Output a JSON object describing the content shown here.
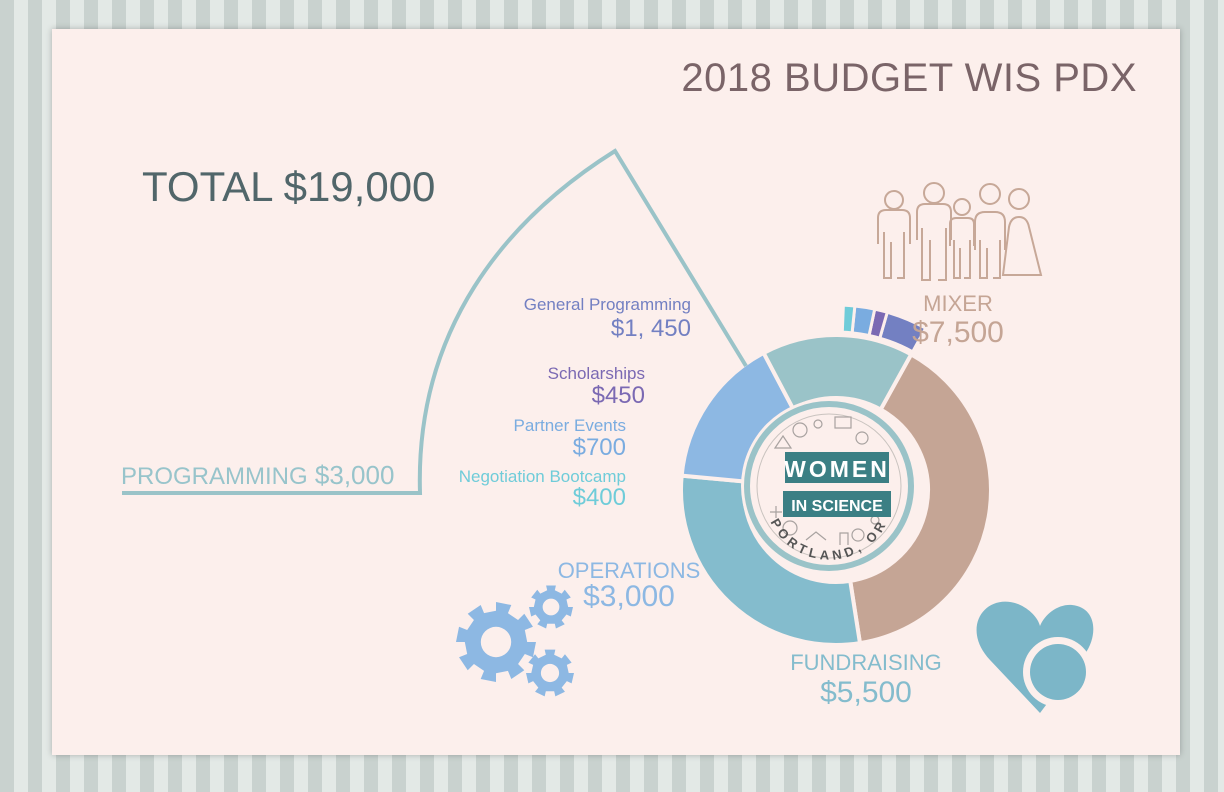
{
  "title": "2018 BUDGET WIS PDX",
  "total_label": "TOTAL $19,000",
  "logo": {
    "line1": "WOMEN",
    "line2": "IN SCIENCE",
    "line3": "PORTLAND, OR"
  },
  "programming": {
    "name": "PROGRAMMING",
    "amount": "$3,000"
  },
  "labels": {
    "general_programming": {
      "name": "General Programming",
      "amount": "$1, 450"
    },
    "scholarships": {
      "name": "Scholarships",
      "amount": "$450"
    },
    "partner_events": {
      "name": "Partner Events",
      "amount": "$700"
    },
    "negotiation_bootcamp": {
      "name": "Negotiation Bootcamp",
      "amount": "$400"
    },
    "mixer": {
      "name": "MIXER",
      "amount": "$7,500"
    },
    "fundraising": {
      "name": "FUNDRAISING",
      "amount": "$5,500"
    },
    "operations": {
      "name": "OPERATIONS",
      "amount": "$3,000"
    }
  },
  "icons": [
    "people-icon",
    "gears-icon",
    "heart-icon"
  ],
  "colors": {
    "mixer": "#c5a595",
    "fundraising": "#84bccd",
    "operations": "#8db8e3",
    "programming": "#9ac3c8",
    "general_programming": "#7380c2",
    "scholarships": "#7b69b3",
    "partner_events": "#7aace0",
    "negotiation_bootcamp": "#6fccd9",
    "title": "#7a6468",
    "total": "#51666a"
  },
  "chart_data": [
    {
      "type": "pie",
      "title": "2018 BUDGET WIS PDX",
      "categories": [
        "MIXER",
        "FUNDRAISING",
        "OPERATIONS",
        "PROGRAMMING"
      ],
      "values": [
        7500,
        5500,
        3000,
        3000
      ],
      "total": 19000
    },
    {
      "type": "pie",
      "title": "PROGRAMMING",
      "categories": [
        "General Programming",
        "Scholarships",
        "Partner Events",
        "Negotiation Bootcamp"
      ],
      "values": [
        1450,
        450,
        700,
        400
      ]
    }
  ]
}
